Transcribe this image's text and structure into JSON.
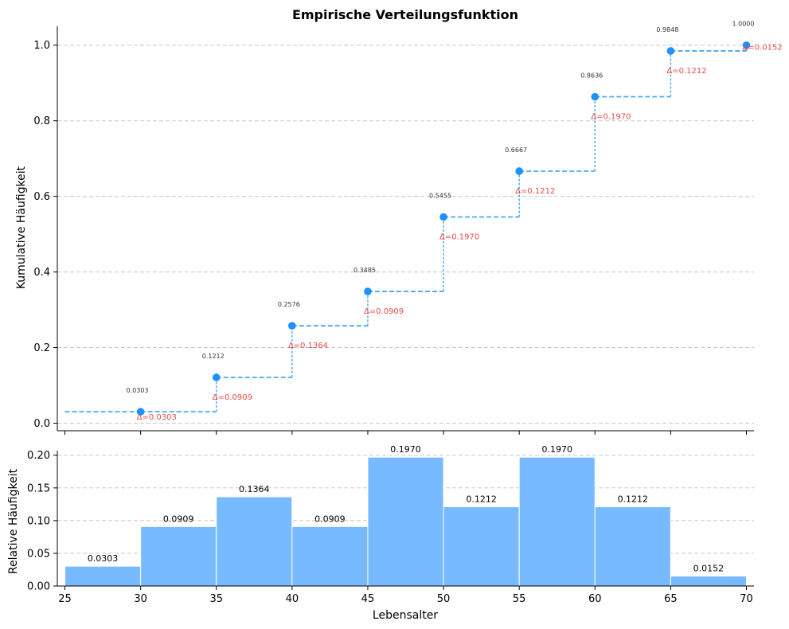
{
  "chart_data": [
    {
      "type": "line",
      "subtype": "step-ecdf",
      "title": "Empirische Verteilungsfunktion",
      "xlabel": "",
      "ylabel": "Kumulative Häufigkeit",
      "xlim": [
        24.5,
        70.5
      ],
      "ylim": [
        -0.02,
        1.05
      ],
      "yticks": [
        "0.0",
        "0.2",
        "0.4",
        "0.6",
        "0.8",
        "1.0"
      ],
      "ytick_values": [
        0.0,
        0.2,
        0.4,
        0.6,
        0.8,
        1.0
      ],
      "grid": true,
      "step_start": {
        "x": 25,
        "y": 0.0303
      },
      "points": [
        {
          "x": 30,
          "y": 0.0303,
          "label": "0.0303",
          "delta": "Δ=0.0303"
        },
        {
          "x": 35,
          "y": 0.1212,
          "label": "0.1212",
          "delta": "Δ=0.0909"
        },
        {
          "x": 40,
          "y": 0.2576,
          "label": "0.2576",
          "delta": "Δ=0.1364"
        },
        {
          "x": 45,
          "y": 0.3485,
          "label": "0.3485",
          "delta": "Δ=0.0909"
        },
        {
          "x": 50,
          "y": 0.5455,
          "label": "0.5455",
          "delta": "Δ=0.1970"
        },
        {
          "x": 55,
          "y": 0.6667,
          "label": "0.6667",
          "delta": "Δ=0.1212"
        },
        {
          "x": 60,
          "y": 0.8636,
          "label": "0.8636",
          "delta": "Δ=0.1970"
        },
        {
          "x": 65,
          "y": 0.9848,
          "label": "0.9848",
          "delta": "Δ=0.1212"
        },
        {
          "x": 70,
          "y": 1.0,
          "label": "1.0000",
          "delta": "Δ=0.0152"
        }
      ],
      "colors": {
        "line": "#4aa8f0",
        "points": "#1e90ff",
        "delta": "#e84a4a"
      }
    },
    {
      "type": "bar",
      "title": "",
      "xlabel": "Lebensalter",
      "ylabel": "Relative Häufigkeit",
      "xlim": [
        24.5,
        70.5
      ],
      "ylim": [
        0,
        0.207
      ],
      "xticks": [
        "25",
        "30",
        "35",
        "40",
        "45",
        "50",
        "55",
        "60",
        "65",
        "70"
      ],
      "xtick_values": [
        25,
        30,
        35,
        40,
        45,
        50,
        55,
        60,
        65,
        70
      ],
      "yticks": [
        "0.00",
        "0.05",
        "0.10",
        "0.15",
        "0.20"
      ],
      "ytick_values": [
        0.0,
        0.05,
        0.1,
        0.15,
        0.2
      ],
      "grid": true,
      "bins": [
        {
          "from": 25,
          "to": 30,
          "value": 0.0303,
          "label": "0.0303"
        },
        {
          "from": 30,
          "to": 35,
          "value": 0.0909,
          "label": "0.0909"
        },
        {
          "from": 35,
          "to": 40,
          "value": 0.1364,
          "label": "0.1364"
        },
        {
          "from": 40,
          "to": 45,
          "value": 0.0909,
          "label": "0.0909"
        },
        {
          "from": 45,
          "to": 50,
          "value": 0.197,
          "label": "0.1970"
        },
        {
          "from": 50,
          "to": 55,
          "value": 0.1212,
          "label": "0.1212"
        },
        {
          "from": 55,
          "to": 60,
          "value": 0.197,
          "label": "0.1970"
        },
        {
          "from": 60,
          "to": 65,
          "value": 0.1212,
          "label": "0.1212"
        },
        {
          "from": 65,
          "to": 70,
          "value": 0.0152,
          "label": "0.0152"
        }
      ],
      "colors": {
        "bar": "#78baff",
        "edge": "#ffffff"
      }
    }
  ]
}
